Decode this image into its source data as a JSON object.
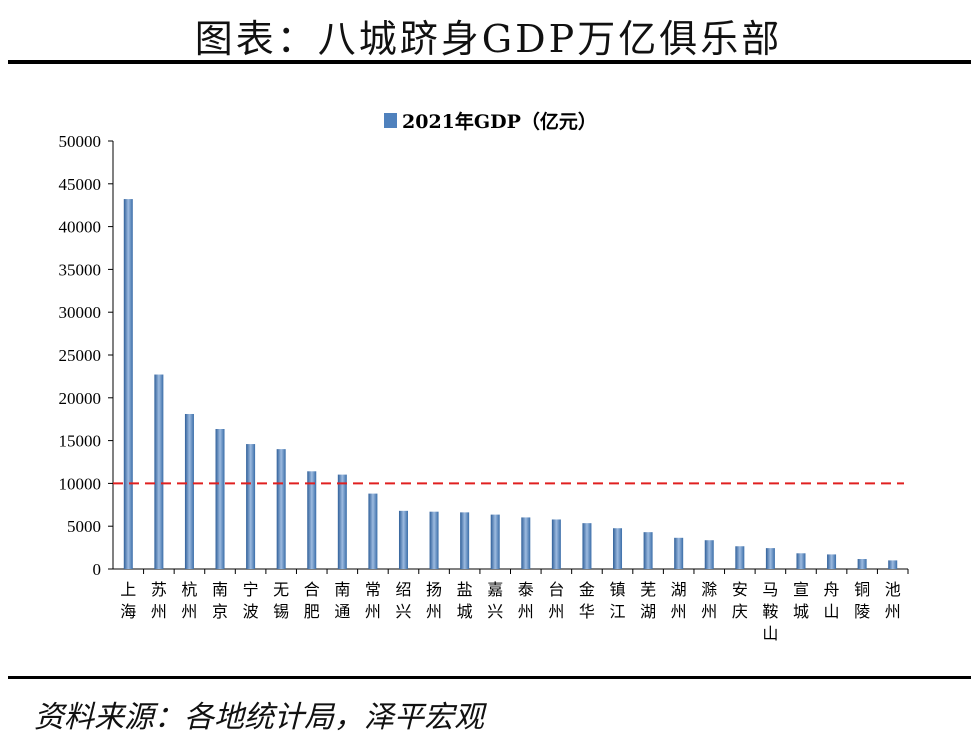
{
  "header": {
    "title": "图表：八城跻身GDP万亿俱乐部"
  },
  "footer": {
    "source": "资料来源：各地统计局，泽平宏观"
  },
  "chart_data": {
    "type": "bar",
    "title": "",
    "legend": [
      "2021年GDP（亿元）"
    ],
    "legend_position": "top-center",
    "categories": [
      "上海",
      "苏州",
      "杭州",
      "南京",
      "宁波",
      "无锡",
      "合肥",
      "南通",
      "常州",
      "绍兴",
      "扬州",
      "盐城",
      "嘉兴",
      "泰州",
      "台州",
      "金华",
      "镇江",
      "芜湖",
      "湖州",
      "滁州",
      "安庆",
      "马鞍山",
      "宣城",
      "舟山",
      "铜陵",
      "池州"
    ],
    "series": [
      {
        "name": "2021年GDP（亿元）",
        "values": [
          43215,
          22718,
          18109,
          16355,
          14595,
          14003,
          11413,
          11027,
          8808,
          6795,
          6696,
          6617,
          6355,
          6025,
          5786,
          5355,
          4763,
          4303,
          3645,
          3362,
          2657,
          2439,
          1834,
          1704,
          1165,
          1005
        ]
      }
    ],
    "reference_line": {
      "value": 10000,
      "color": "#e02020",
      "style": "dashed"
    },
    "ylim": [
      0,
      50000
    ],
    "yticks": [
      0,
      5000,
      10000,
      15000,
      20000,
      25000,
      30000,
      35000,
      40000,
      45000,
      50000
    ],
    "bar_color": "#4f81bd",
    "grid": false,
    "xlabel": "",
    "ylabel": ""
  }
}
